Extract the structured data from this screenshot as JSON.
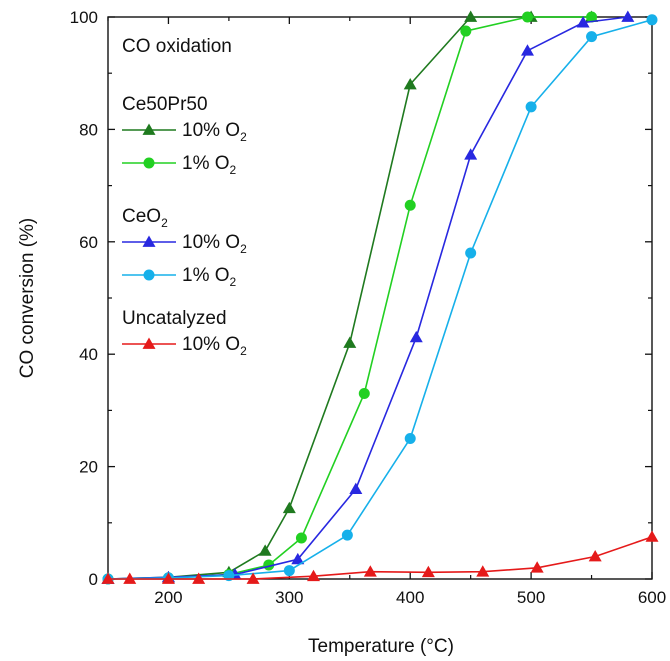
{
  "chart_data": {
    "type": "line",
    "xlabel": "Temperature (°C)",
    "ylabel": "CO conversion (%)",
    "xlim": [
      150,
      600
    ],
    "ylim": [
      0,
      100
    ],
    "xticks": [
      "200",
      "300",
      "400",
      "500",
      "600"
    ],
    "yticks": [
      "0",
      "20",
      "40",
      "60",
      "80",
      "100"
    ],
    "grid": false,
    "legend_position": "top-left",
    "legend": {
      "title": "CO oxidation",
      "groups": [
        {
          "label": "Ce50Pr50",
          "label_sub": ""
        },
        {
          "label": "CeO",
          "label_sub": "2"
        },
        {
          "label": "Uncatalyzed",
          "label_sub": ""
        }
      ],
      "series_label_main": {
        "10": "10% O",
        "1": "1% O"
      },
      "series_label_sub": "2"
    },
    "series": [
      {
        "group": 0,
        "label_main": "10% O",
        "label_sub": "2",
        "color": "#1f7a1f",
        "marker": "triangle",
        "x": [
          150,
          200,
          250,
          280,
          300,
          350,
          400,
          450,
          500,
          550
        ],
        "y": [
          0,
          0.3,
          1.2,
          5,
          12.6,
          42,
          88,
          100,
          100,
          100
        ]
      },
      {
        "group": 0,
        "label_main": "1% O",
        "label_sub": "2",
        "color": "#22d022",
        "marker": "circle",
        "x": [
          150,
          200,
          250,
          283,
          310,
          362,
          400,
          446,
          497,
          550
        ],
        "y": [
          0,
          0.2,
          0.8,
          2.5,
          7.3,
          33,
          66.5,
          97.5,
          100,
          100
        ]
      },
      {
        "group": 1,
        "label_main": "10% O",
        "label_sub": "2",
        "color": "#2828e0",
        "marker": "triangle",
        "x": [
          150,
          200,
          255,
          307,
          355,
          405,
          450,
          497,
          543,
          580
        ],
        "y": [
          0,
          0.3,
          0.8,
          3.5,
          16,
          43,
          75.5,
          94,
          99,
          100
        ]
      },
      {
        "group": 1,
        "label_main": "1% O",
        "label_sub": "2",
        "color": "#16b0ea",
        "marker": "circle",
        "x": [
          150,
          200,
          250,
          300,
          348,
          400,
          450,
          500,
          550,
          600
        ],
        "y": [
          0,
          0.2,
          0.6,
          1.5,
          7.8,
          25,
          58,
          84,
          96.5,
          99.5
        ]
      },
      {
        "group": 2,
        "label_main": "10% O",
        "label_sub": "2",
        "color": "#e51a1a",
        "marker": "triangle",
        "x": [
          150,
          168,
          200,
          225,
          270,
          320,
          367,
          415,
          460,
          505,
          553,
          600
        ],
        "y": [
          0,
          0,
          0,
          0,
          0,
          0.5,
          1.3,
          1.2,
          1.3,
          2,
          4,
          7.5
        ]
      }
    ]
  }
}
